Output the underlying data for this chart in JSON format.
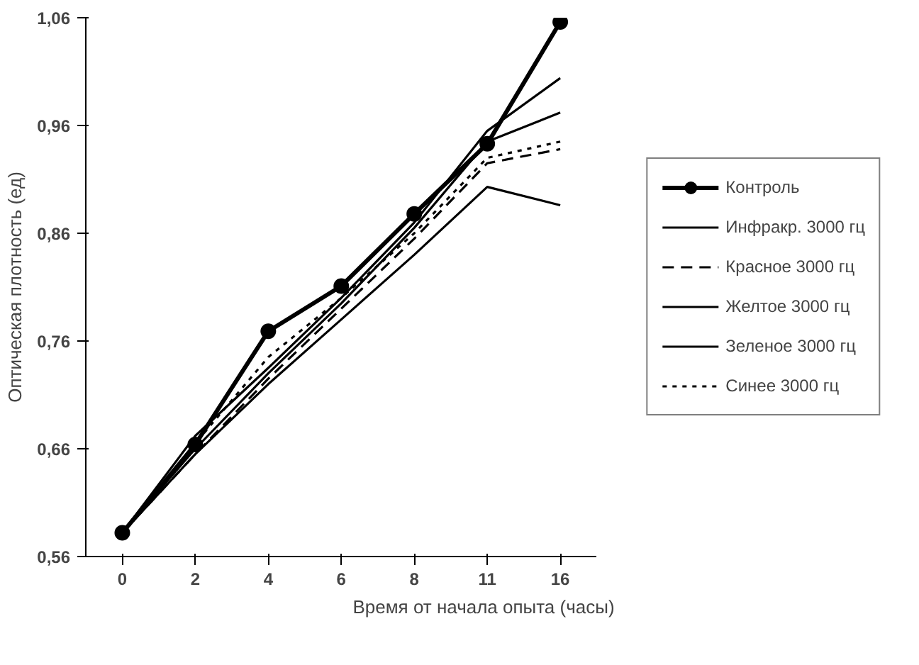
{
  "chart_data": {
    "type": "line",
    "xlabel": "Время от начала опыта (часы)",
    "ylabel": "Оптическая плотность (ед)",
    "categories": [
      "0",
      "2",
      "4",
      "6",
      "8",
      "11",
      "16"
    ],
    "ylim": [
      0.56,
      1.06
    ],
    "yticks": [
      {
        "value": 0.56,
        "label": "0,56"
      },
      {
        "value": 0.66,
        "label": "0,66"
      },
      {
        "value": 0.76,
        "label": "0,76"
      },
      {
        "value": 0.86,
        "label": "0,86"
      },
      {
        "value": 0.96,
        "label": "0,96"
      },
      {
        "value": 1.06,
        "label": "1,06"
      }
    ],
    "grid": false,
    "legend": "right",
    "marker": "none",
    "line_style": "solid",
    "series": [
      {
        "name": "Контроль",
        "color": "#000000",
        "marker": "circle",
        "values": [
          0.582,
          0.664,
          0.769,
          0.811,
          0.878,
          0.943,
          1.056
        ]
      },
      {
        "name": "Инфракр. 3000 гц",
        "color": "#000000",
        "values": [
          0.582,
          0.672,
          0.735,
          0.8,
          0.87,
          0.955,
          1.004
        ]
      },
      {
        "name": "Красное 3000 гц",
        "color": "#000000",
        "line_style": "dashed",
        "values": [
          0.582,
          0.655,
          0.725,
          0.79,
          0.855,
          0.925,
          0.938
        ]
      },
      {
        "name": "Желтое 3000 гц",
        "color": "#000000",
        "values": [
          0.582,
          0.66,
          0.73,
          0.795,
          0.865,
          0.945,
          0.972
        ]
      },
      {
        "name": "Зеленое 3000 гц",
        "color": "#000000",
        "values": [
          0.582,
          0.655,
          0.72,
          0.78,
          0.84,
          0.903,
          0.886
        ]
      },
      {
        "name": "Синее 3000 гц",
        "color": "#000000",
        "line_style": "dotted",
        "values": [
          0.582,
          0.665,
          0.745,
          0.8,
          0.86,
          0.93,
          0.945
        ]
      }
    ]
  }
}
